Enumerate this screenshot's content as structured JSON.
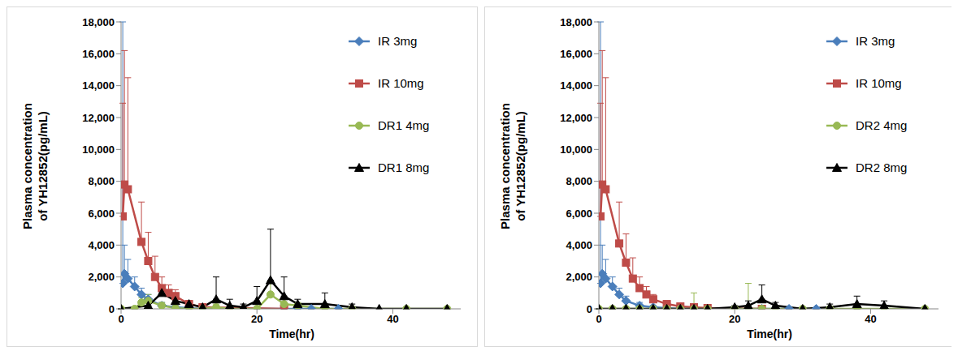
{
  "chart_data": [
    {
      "type": "line",
      "x_label": "Time(hr)",
      "y_label": "Plasma concentration of YH12852(pg/mL)",
      "grid": false,
      "legend": "right",
      "xlim": [
        0,
        50
      ],
      "xticks": [
        0,
        20,
        40
      ],
      "ylim": [
        0,
        18000
      ],
      "yticks": [
        0,
        {
          "value": 2000,
          "label": "2,000"
        },
        {
          "value": 4000,
          "label": "4,000"
        },
        {
          "value": 6000,
          "label": "6,000"
        },
        {
          "value": 8000,
          "label": "8,000"
        },
        {
          "value": 10000,
          "label": "10,000"
        },
        {
          "value": 12000,
          "label": "12,000"
        },
        {
          "value": 14000,
          "label": "14,000"
        },
        {
          "value": 16000,
          "label": "16,000"
        },
        {
          "value": 18000,
          "label": "18,000"
        }
      ],
      "series": [
        {
          "name": "IR 3mg",
          "color": "#4a7ebb",
          "marker": "diamond",
          "x": [
            0.25,
            0.5,
            1,
            2,
            3,
            4,
            6,
            8,
            12,
            24,
            26,
            28,
            32
          ],
          "values": [
            1600,
            2200,
            1900,
            1400,
            900,
            600,
            200,
            100,
            0,
            0,
            0,
            0,
            0
          ],
          "errors": [
            16400,
            1800,
            1200,
            600,
            400,
            300,
            200,
            100,
            0,
            0,
            0,
            0,
            0
          ]
        },
        {
          "name": "IR 10mg",
          "color": "#be4b48",
          "marker": "square",
          "x": [
            0.25,
            0.5,
            1,
            3,
            4,
            5,
            6,
            7,
            8,
            10,
            12,
            24
          ],
          "values": [
            5800,
            7800,
            7500,
            4200,
            3000,
            2000,
            1300,
            1000,
            800,
            300,
            100,
            0
          ],
          "errors": [
            7100,
            8400,
            7000,
            2500,
            1800,
            1300,
            700,
            500,
            400,
            200,
            100,
            0
          ]
        },
        {
          "name": "DR1 4mg",
          "color": "#98b954",
          "marker": "circle",
          "x": [
            0,
            2,
            3,
            4,
            6,
            8,
            10,
            12,
            14,
            16,
            20,
            22,
            24,
            26,
            30,
            34,
            42,
            48
          ],
          "values": [
            0,
            0,
            400,
            500,
            200,
            50,
            0,
            0,
            100,
            0,
            0,
            900,
            300,
            200,
            0,
            0,
            0,
            0
          ],
          "errors": [
            0,
            0,
            300,
            400,
            200,
            100,
            0,
            0,
            200,
            0,
            0,
            700,
            300,
            200,
            0,
            0,
            0,
            0
          ]
        },
        {
          "name": "DR1 8mg",
          "color": "#000000",
          "marker": "triangle",
          "x": [
            0,
            4,
            6,
            8,
            10,
            12,
            14,
            16,
            18,
            20,
            22,
            24,
            26,
            30,
            34,
            38,
            42,
            48
          ],
          "values": [
            0,
            200,
            1000,
            500,
            300,
            100,
            600,
            200,
            100,
            500,
            1800,
            800,
            300,
            300,
            100,
            0,
            0,
            0
          ],
          "errors": [
            0,
            200,
            400,
            300,
            200,
            100,
            1400,
            400,
            200,
            900,
            3200,
            1200,
            300,
            700,
            200,
            0,
            0,
            0
          ]
        }
      ]
    },
    {
      "type": "line",
      "x_label": "Time(hr)",
      "y_label": "Plasma concentration of YH12852(pg/mL)",
      "grid": false,
      "legend": "right",
      "xlim": [
        0,
        50
      ],
      "xticks": [
        0,
        20,
        40
      ],
      "ylim": [
        0,
        18000
      ],
      "yticks": [
        0,
        {
          "value": 2000,
          "label": "2,000"
        },
        {
          "value": 4000,
          "label": "4,000"
        },
        {
          "value": 6000,
          "label": "6,000"
        },
        {
          "value": 8000,
          "label": "8,000"
        },
        {
          "value": 10000,
          "label": "10,000"
        },
        {
          "value": 12000,
          "label": "12,000"
        },
        {
          "value": 14000,
          "label": "14,000"
        },
        {
          "value": 16000,
          "label": "16,000"
        },
        {
          "value": 18000,
          "label": "18,000"
        }
      ],
      "series": [
        {
          "name": "IR 3mg",
          "color": "#4a7ebb",
          "marker": "diamond",
          "x": [
            0.25,
            0.5,
            1,
            2,
            3,
            4,
            6,
            8,
            12,
            24,
            28,
            32
          ],
          "values": [
            1600,
            2200,
            1900,
            1400,
            900,
            500,
            200,
            100,
            0,
            0,
            0,
            0
          ],
          "errors": [
            16400,
            1800,
            1200,
            600,
            400,
            300,
            200,
            100,
            0,
            0,
            0,
            0
          ]
        },
        {
          "name": "IR 10mg",
          "color": "#be4b48",
          "marker": "square",
          "x": [
            0.25,
            0.5,
            1,
            3,
            4,
            5,
            6,
            7,
            8,
            10,
            12,
            14,
            16,
            24
          ],
          "values": [
            5800,
            7800,
            7500,
            4100,
            2900,
            1900,
            1300,
            900,
            600,
            300,
            150,
            100,
            50,
            0
          ],
          "errors": [
            7100,
            8400,
            7000,
            2600,
            1800,
            1300,
            700,
            500,
            300,
            200,
            100,
            100,
            50,
            0
          ]
        },
        {
          "name": "DR2 4mg",
          "color": "#98b954",
          "marker": "circle",
          "x": [
            0,
            2,
            4,
            6,
            8,
            10,
            12,
            14,
            16,
            20,
            22,
            24,
            26,
            30,
            34,
            38,
            42,
            48
          ],
          "values": [
            0,
            0,
            0,
            0,
            0,
            0,
            0,
            0,
            0,
            0,
            0,
            0,
            0,
            0,
            0,
            0,
            0,
            0
          ],
          "errors": [
            0,
            0,
            0,
            0,
            0,
            0,
            0,
            1000,
            0,
            0,
            1600,
            0,
            0,
            0,
            0,
            0,
            0,
            0
          ]
        },
        {
          "name": "DR2 8mg",
          "color": "#000000",
          "marker": "triangle",
          "x": [
            0,
            2,
            4,
            6,
            8,
            10,
            12,
            14,
            16,
            20,
            22,
            24,
            26,
            30,
            34,
            38,
            42,
            48
          ],
          "values": [
            0,
            0,
            0,
            0,
            0,
            0,
            0,
            0,
            0,
            100,
            200,
            600,
            200,
            0,
            100,
            300,
            200,
            0
          ],
          "errors": [
            0,
            0,
            0,
            0,
            0,
            0,
            0,
            0,
            0,
            100,
            300,
            900,
            200,
            0,
            200,
            500,
            300,
            0
          ]
        }
      ]
    }
  ]
}
